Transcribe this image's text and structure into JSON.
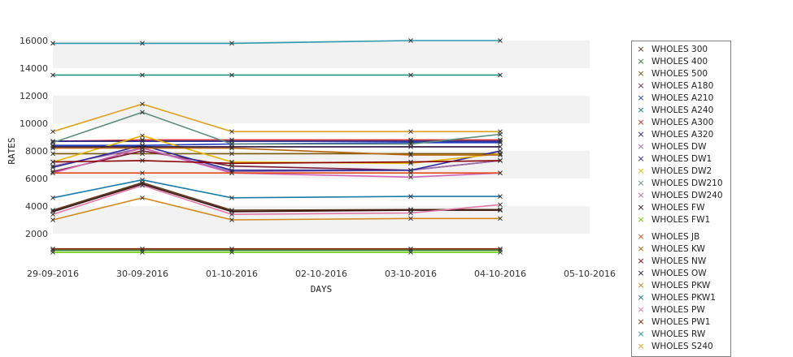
{
  "chart_data": {
    "type": "line",
    "xlabel": "DAYS",
    "ylabel": "RATES",
    "x_ticks": [
      "29-09-2016",
      "30-09-2016",
      "01-10-2016",
      "02-10-2016",
      "03-10-2016",
      "04-10-2016",
      "05-10-2016"
    ],
    "x": [
      "29-09-2016",
      "30-09-2016",
      "01-10-2016",
      "03-10-2016",
      "04-10-2016"
    ],
    "ylim": [
      0,
      16000
    ],
    "y_ticks": [
      2000,
      4000,
      6000,
      8000,
      10000,
      12000,
      14000,
      16000
    ],
    "grid": "alternating horizontal bands",
    "legend_position": "right",
    "series": [
      {
        "name": "WHOLES 300",
        "color": "#5a3a1a",
        "values": [
          3700,
          5700,
          3700,
          3750,
          3750
        ]
      },
      {
        "name": "WHOLES 400",
        "color": "#2e7d32",
        "values": [
          800,
          800,
          800,
          800,
          800
        ]
      },
      {
        "name": "WHOLES 500",
        "color": "#7a5a00",
        "values": [
          7800,
          7800,
          7800,
          7800,
          7800
        ]
      },
      {
        "name": "WHOLES A180",
        "color": "#7a1c3a",
        "values": [
          6500,
          8000,
          6900,
          6600,
          7300
        ]
      },
      {
        "name": "WHOLES A210",
        "color": "#1f3fbf",
        "values": [
          8400,
          8400,
          8500,
          8600,
          8600
        ]
      },
      {
        "name": "WHOLES A240",
        "color": "#0f8a7a",
        "values": [
          13500,
          13500,
          13500,
          13500,
          13500
        ]
      },
      {
        "name": "WHOLES A300",
        "color": "#d32f2f",
        "values": [
          8700,
          8800,
          8800,
          8800,
          8800
        ]
      },
      {
        "name": "WHOLES A320",
        "color": "#1a1a8c",
        "values": [
          8700,
          8700,
          8700,
          8700,
          8700
        ]
      },
      {
        "name": "WHOLES DW",
        "color": "#9b6bb0",
        "values": [
          6900,
          8200,
          6500,
          6600,
          7300
        ]
      },
      {
        "name": "WHOLES DW1",
        "color": "#2a2a9a",
        "values": [
          6800,
          8400,
          6600,
          6600,
          8000
        ]
      },
      {
        "name": "WHOLES DW2",
        "color": "#e6b800",
        "values": [
          7200,
          9100,
          7200,
          7100,
          7800
        ]
      },
      {
        "name": "WHOLES DW210",
        "color": "#5c8f80",
        "values": [
          8600,
          10800,
          8500,
          8500,
          9200
        ]
      },
      {
        "name": "WHOLES DW240",
        "color": "#d064b8",
        "values": [
          6400,
          8200,
          6400,
          6100,
          6400
        ]
      },
      {
        "name": "WHOLES FW",
        "color": "#3a1010",
        "values": [
          3600,
          5600,
          3600,
          3700,
          3700
        ]
      },
      {
        "name": "WHOLES FW1",
        "color": "#66cc00",
        "values": [
          650,
          650,
          650,
          650,
          650
        ]
      },
      {
        "name": "WHOLES JB",
        "color": "#e64a19",
        "values": [
          6400,
          6400,
          6400,
          6400,
          6400
        ]
      },
      {
        "name": "WHOLES KW",
        "color": "#b8640a",
        "values": [
          8200,
          8200,
          8200,
          7700,
          7700
        ]
      },
      {
        "name": "WHOLES NW",
        "color": "#8b0000",
        "values": [
          7200,
          7300,
          7100,
          7200,
          7300
        ]
      },
      {
        "name": "WHOLES OW",
        "color": "#2a0f3a",
        "values": [
          8300,
          8300,
          8300,
          8300,
          8300
        ]
      },
      {
        "name": "WHOLES PKW",
        "color": "#d4881a",
        "values": [
          3000,
          4600,
          3000,
          3100,
          3100
        ]
      },
      {
        "name": "WHOLES PKW1",
        "color": "#1a7aa8",
        "values": [
          4600,
          5900,
          4600,
          4700,
          4700
        ]
      },
      {
        "name": "WHOLES PW",
        "color": "#e07aa8",
        "values": [
          3400,
          5500,
          3400,
          3500,
          4100
        ]
      },
      {
        "name": "WHOLES PW1",
        "color": "#8b2500",
        "values": [
          900,
          900,
          900,
          900,
          900
        ]
      },
      {
        "name": "WHOLES RW",
        "color": "#2b9ab0",
        "values": [
          15800,
          15800,
          15800,
          16000,
          16000
        ]
      },
      {
        "name": "WHOLES S240",
        "color": "#e0a020",
        "values": [
          9400,
          11400,
          9400,
          9400,
          9400
        ]
      }
    ]
  }
}
